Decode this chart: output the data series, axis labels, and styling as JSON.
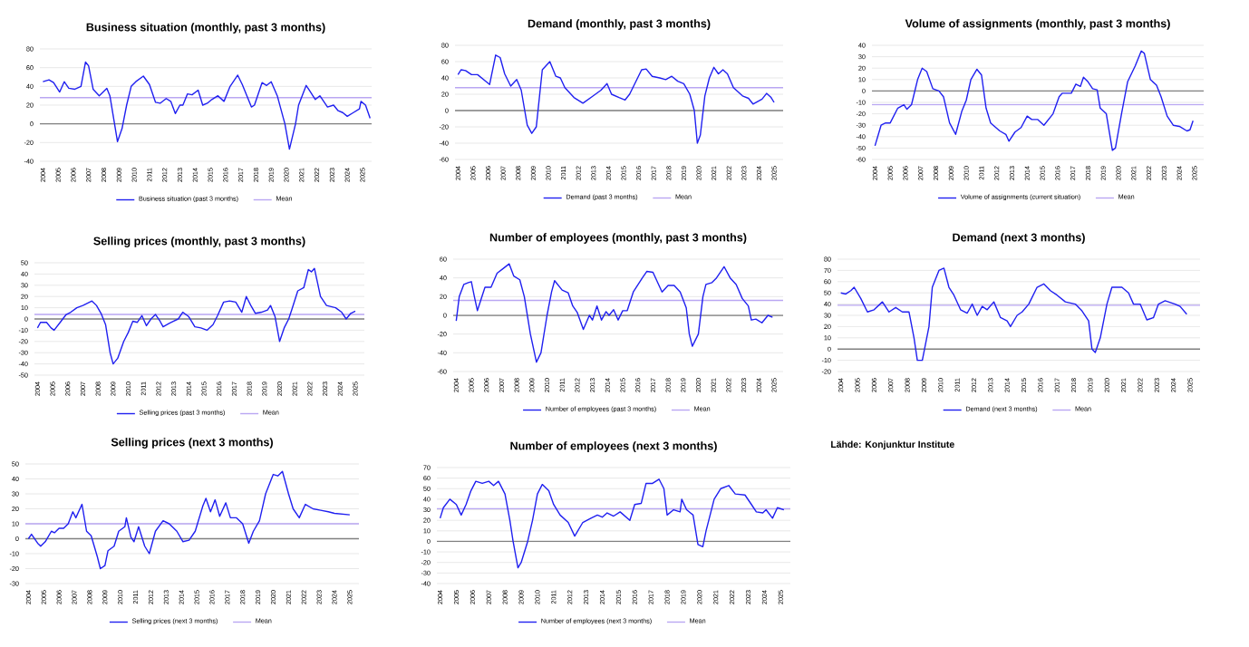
{
  "chart_data": [
    {
      "type": "line",
      "title": "Business situation (monthly, past 3 months)",
      "xlim": [
        2003.8,
        2025.6
      ],
      "xticks": [
        2004,
        2005,
        2006,
        2007,
        2008,
        2009,
        2010,
        2011,
        2012,
        2013,
        2014,
        2015,
        2016,
        2017,
        2018,
        2019,
        2020,
        2021,
        2022,
        2023,
        2024,
        2025
      ],
      "ylim": [
        -40,
        80
      ],
      "yticks": [
        -40,
        -20,
        0,
        20,
        40,
        60,
        80
      ],
      "grid": "y",
      "legend": "bottom",
      "ref_lines": [
        {
          "axis": "y",
          "value": 0,
          "color": "#808080"
        },
        {
          "axis": "y",
          "value": 28,
          "label": "Mean",
          "color": "#b9a6f2"
        }
      ],
      "series": [
        {
          "name": "Business situation (past 3 months)",
          "color": "#2020f0",
          "x": [
            2004.0,
            2004.4,
            2004.7,
            2005.1,
            2005.4,
            2005.7,
            2006.1,
            2006.5,
            2006.8,
            2007.0,
            2007.3,
            2007.7,
            2008.2,
            2008.4,
            2008.9,
            2009.2,
            2009.5,
            2009.8,
            2010.1,
            2010.6,
            2011.0,
            2011.4,
            2011.7,
            2012.1,
            2012.4,
            2012.7,
            2013.0,
            2013.2,
            2013.5,
            2013.8,
            2014.2,
            2014.5,
            2014.8,
            2015.1,
            2015.5,
            2015.9,
            2016.3,
            2016.8,
            2017.1,
            2017.7,
            2017.9,
            2018.4,
            2018.7,
            2019.0,
            2019.4,
            2019.9,
            2020.2,
            2020.6,
            2020.8,
            2021.3,
            2021.5,
            2021.9,
            2022.2,
            2022.7,
            2023.1,
            2023.4,
            2023.7,
            2024.0,
            2024.4,
            2024.8,
            2024.9,
            2025.2,
            2025.5
          ],
          "values": [
            45,
            47,
            44,
            34,
            45,
            38,
            37,
            40,
            66,
            62,
            37,
            30,
            38,
            30,
            -19,
            -5,
            20,
            40,
            45,
            51,
            42,
            23,
            22,
            27,
            24,
            11,
            20,
            20,
            32,
            31,
            36,
            20,
            22,
            26,
            30,
            24,
            40,
            52,
            42,
            18,
            20,
            44,
            41,
            45,
            30,
            0,
            -27,
            0,
            20,
            41,
            36,
            26,
            30,
            18,
            20,
            14,
            12,
            8,
            12,
            16,
            24,
            20,
            6
          ]
        }
      ]
    },
    {
      "type": "line",
      "title": "Demand (monthly, past 3 months)",
      "xlim": [
        2003.8,
        2025.6
      ],
      "xticks": [
        2004,
        2005,
        2006,
        2007,
        2008,
        2009,
        2010,
        2011,
        2012,
        2013,
        2014,
        2015,
        2016,
        2017,
        2018,
        2019,
        2020,
        2021,
        2022,
        2023,
        2024,
        2025
      ],
      "ylim": [
        -60,
        80
      ],
      "yticks": [
        -60,
        -40,
        -20,
        0,
        20,
        40,
        60,
        80
      ],
      "grid": "y",
      "legend": "bottom",
      "ref_lines": [
        {
          "axis": "y",
          "value": 0,
          "color": "#808080"
        },
        {
          "axis": "y",
          "value": 28,
          "label": "Mean",
          "color": "#b9a6f2"
        }
      ],
      "series": [
        {
          "name": "Demand (past 3 months)",
          "color": "#2020f0",
          "x": [
            2004.0,
            2004.2,
            2004.5,
            2004.9,
            2005.3,
            2005.9,
            2006.1,
            2006.5,
            2006.8,
            2007.1,
            2007.5,
            2007.9,
            2008.2,
            2008.6,
            2008.9,
            2009.2,
            2009.6,
            2010.1,
            2010.5,
            2010.8,
            2011.1,
            2011.7,
            2012.3,
            2012.9,
            2013.5,
            2013.9,
            2014.2,
            2014.7,
            2015.1,
            2015.4,
            2015.8,
            2016.2,
            2016.5,
            2016.9,
            2017.4,
            2017.8,
            2018.2,
            2018.6,
            2019.0,
            2019.4,
            2019.7,
            2019.9,
            2020.1,
            2020.4,
            2020.7,
            2021.0,
            2021.3,
            2021.6,
            2021.9,
            2022.3,
            2022.6,
            2022.9,
            2023.3,
            2023.6,
            2024.2,
            2024.5,
            2024.8,
            2025.0
          ],
          "values": [
            44,
            50,
            49,
            44,
            44,
            35,
            32,
            68,
            65,
            45,
            30,
            38,
            25,
            -18,
            -28,
            -20,
            50,
            60,
            42,
            40,
            28,
            16,
            9,
            17,
            25,
            33,
            20,
            16,
            13,
            20,
            35,
            50,
            51,
            42,
            40,
            38,
            42,
            36,
            33,
            20,
            0,
            -40,
            -30,
            18,
            40,
            53,
            45,
            50,
            45,
            28,
            23,
            18,
            15,
            8,
            14,
            21,
            16,
            10
          ]
        }
      ]
    },
    {
      "type": "line",
      "title": "Volume of assignments (monthly, past 3 months)",
      "xlim": [
        2003.8,
        2025.6
      ],
      "xticks": [
        2004,
        2005,
        2006,
        2007,
        2008,
        2009,
        2010,
        2011,
        2012,
        2013,
        2014,
        2015,
        2016,
        2017,
        2018,
        2019,
        2020,
        2021,
        2022,
        2023,
        2024,
        2025
      ],
      "ylim": [
        -60,
        40
      ],
      "yticks": [
        -60,
        -50,
        -40,
        -30,
        -20,
        -10,
        0,
        10,
        20,
        30,
        40
      ],
      "grid": "y",
      "legend": "bottom",
      "ref_lines": [
        {
          "axis": "y",
          "value": 0,
          "color": "#808080"
        },
        {
          "axis": "y",
          "value": -12,
          "label": "Mean",
          "color": "#b9a6f2"
        }
      ],
      "series": [
        {
          "name": "Volume of assignments (current situation)",
          "color": "#2020f0",
          "x": [
            2004.0,
            2004.4,
            2004.7,
            2005.0,
            2005.5,
            2005.9,
            2006.1,
            2006.4,
            2006.8,
            2007.1,
            2007.4,
            2007.8,
            2008.2,
            2008.5,
            2008.9,
            2009.3,
            2009.7,
            2010.0,
            2010.3,
            2010.7,
            2011.0,
            2011.3,
            2011.6,
            2012.2,
            2012.6,
            2012.8,
            2013.2,
            2013.6,
            2014.0,
            2014.3,
            2014.7,
            2015.1,
            2015.7,
            2016.1,
            2016.3,
            2016.9,
            2017.2,
            2017.5,
            2017.7,
            2018.0,
            2018.3,
            2018.6,
            2018.8,
            2019.2,
            2019.6,
            2019.8,
            2020.2,
            2020.6,
            2021.1,
            2021.5,
            2021.7,
            2022.1,
            2022.5,
            2022.8,
            2023.2,
            2023.6,
            2024.0,
            2024.5,
            2024.7,
            2024.9
          ],
          "values": [
            -48,
            -30,
            -28,
            -28,
            -15,
            -12,
            -16,
            -12,
            10,
            20,
            17,
            2,
            0,
            -5,
            -28,
            -38,
            -18,
            -8,
            10,
            19,
            14,
            -15,
            -28,
            -35,
            -38,
            -44,
            -36,
            -32,
            -22,
            -25,
            -25,
            -30,
            -20,
            -5,
            -2,
            -2,
            6,
            4,
            12,
            8,
            2,
            1,
            -15,
            -20,
            -52,
            -50,
            -20,
            8,
            22,
            35,
            33,
            10,
            5,
            -5,
            -22,
            -30,
            -31,
            -35,
            -34,
            -26
          ]
        }
      ]
    },
    {
      "type": "line",
      "title": "Selling prices (monthly, past 3 months)",
      "xlim": [
        2003.8,
        2025.6
      ],
      "xticks": [
        2004,
        2005,
        2006,
        2007,
        2008,
        2009,
        2010,
        2011,
        2012,
        2013,
        2014,
        2015,
        2016,
        2017,
        2018,
        2019,
        2020,
        2021,
        2022,
        2023,
        2024,
        2025
      ],
      "ylim": [
        -50,
        50
      ],
      "yticks": [
        -50,
        -40,
        -30,
        -20,
        -10,
        0,
        10,
        20,
        30,
        40,
        50
      ],
      "grid": "y",
      "legend": "bottom",
      "ref_lines": [
        {
          "axis": "y",
          "value": 0,
          "color": "#808080"
        },
        {
          "axis": "y",
          "value": 4,
          "label": "Mean",
          "color": "#b9a6f2"
        }
      ],
      "series": [
        {
          "name": "Selling prices (past 3 months)",
          "color": "#2020f0",
          "x": [
            2004.0,
            2004.2,
            2004.6,
            2004.9,
            2005.1,
            2005.5,
            2005.9,
            2006.2,
            2006.6,
            2007.0,
            2007.6,
            2007.9,
            2008.2,
            2008.5,
            2008.8,
            2009.0,
            2009.3,
            2009.7,
            2010.0,
            2010.3,
            2010.6,
            2010.9,
            2011.2,
            2011.5,
            2011.8,
            2012.1,
            2012.3,
            2012.7,
            2013.0,
            2013.3,
            2013.6,
            2014.0,
            2014.4,
            2014.8,
            2015.2,
            2015.6,
            2015.9,
            2016.3,
            2016.7,
            2017.1,
            2017.5,
            2017.8,
            2018.1,
            2018.4,
            2018.8,
            2019.2,
            2019.4,
            2019.7,
            2020.0,
            2020.3,
            2020.6,
            2020.8,
            2021.2,
            2021.6,
            2021.9,
            2022.1,
            2022.3,
            2022.7,
            2023.1,
            2023.7,
            2024.1,
            2024.4,
            2024.7,
            2025.0
          ],
          "values": [
            -8,
            -3,
            -3,
            -8,
            -10,
            -3,
            4,
            6,
            10,
            12,
            16,
            12,
            5,
            -5,
            -30,
            -40,
            -35,
            -20,
            -12,
            -2,
            -3,
            3,
            -6,
            0,
            4,
            -2,
            -7,
            -4,
            -2,
            0,
            6,
            2,
            -7,
            -8,
            -10,
            -5,
            3,
            15,
            16,
            15,
            6,
            20,
            12,
            5,
            6,
            8,
            12,
            2,
            -20,
            -8,
            0,
            8,
            25,
            28,
            44,
            42,
            45,
            20,
            12,
            10,
            6,
            0,
            5,
            7
          ]
        }
      ]
    },
    {
      "type": "line",
      "title": "Number of employees (monthly, past 3 months)",
      "xlim": [
        2003.8,
        2025.6
      ],
      "xticks": [
        2004,
        2005,
        2006,
        2007,
        2008,
        2009,
        2010,
        2011,
        2012,
        2013,
        2014,
        2015,
        2016,
        2017,
        2018,
        2019,
        2020,
        2021,
        2022,
        2023,
        2024,
        2025
      ],
      "ylim": [
        -60,
        60
      ],
      "yticks": [
        -60,
        -40,
        -20,
        0,
        20,
        40,
        60
      ],
      "grid": "y",
      "legend": "bottom",
      "ref_lines": [
        {
          "axis": "y",
          "value": 0,
          "color": "#808080"
        },
        {
          "axis": "y",
          "value": 16,
          "label": "Mean",
          "color": "#b9a6f2"
        }
      ],
      "series": [
        {
          "name": "Number of employees (past 3 months)",
          "color": "#2020f0",
          "x": [
            2004.0,
            2004.2,
            2004.5,
            2004.8,
            2005.0,
            2005.2,
            2005.4,
            2005.7,
            2005.9,
            2006.3,
            2006.7,
            2007.1,
            2007.5,
            2007.8,
            2008.2,
            2008.5,
            2008.9,
            2009.3,
            2009.6,
            2010.0,
            2010.3,
            2010.5,
            2011.0,
            2011.4,
            2011.7,
            2012.0,
            2012.4,
            2012.8,
            2013.0,
            2013.3,
            2013.6,
            2013.9,
            2014.1,
            2014.4,
            2014.7,
            2015.0,
            2015.3,
            2015.7,
            2016.3,
            2016.6,
            2017.0,
            2017.6,
            2018.0,
            2018.4,
            2018.8,
            2019.2,
            2019.4,
            2019.6,
            2020.0,
            2020.3,
            2020.5,
            2020.9,
            2021.2,
            2021.7,
            2022.1,
            2022.5,
            2022.9,
            2023.3,
            2023.5,
            2023.8,
            2024.2,
            2024.6,
            2024.9
          ],
          "values": [
            -6,
            20,
            33,
            35,
            36,
            20,
            5,
            20,
            30,
            30,
            45,
            50,
            55,
            42,
            38,
            20,
            -20,
            -50,
            -40,
            0,
            25,
            37,
            27,
            24,
            10,
            3,
            -15,
            0,
            -5,
            10,
            -5,
            4,
            0,
            6,
            -5,
            5,
            5,
            25,
            40,
            47,
            46,
            25,
            32,
            32,
            25,
            8,
            -20,
            -33,
            -20,
            20,
            33,
            35,
            40,
            52,
            40,
            33,
            18,
            10,
            -5,
            -4,
            -8,
            0,
            -2
          ]
        }
      ]
    },
    {
      "type": "line",
      "title": "Demand (next 3 months)",
      "xlim": [
        2003.8,
        2025.6
      ],
      "xticks": [
        2004,
        2005,
        2006,
        2007,
        2008,
        2009,
        2010,
        2011,
        2012,
        2013,
        2014,
        2015,
        2016,
        2017,
        2018,
        2019,
        2020,
        2021,
        2022,
        2023,
        2024,
        2025
      ],
      "ylim": [
        -20,
        80
      ],
      "yticks": [
        -20,
        -10,
        0,
        10,
        20,
        30,
        40,
        50,
        60,
        70,
        80
      ],
      "grid": "y",
      "legend": "bottom",
      "ref_lines": [
        {
          "axis": "y",
          "value": 0,
          "color": "#808080"
        },
        {
          "axis": "y",
          "value": 39,
          "label": "Mean",
          "color": "#b9a6f2"
        }
      ],
      "series": [
        {
          "name": "Demand (next 3 months)",
          "color": "#2020f0",
          "x": [
            2004.0,
            2004.3,
            2004.6,
            2004.8,
            2005.2,
            2005.6,
            2006.0,
            2006.5,
            2006.9,
            2007.3,
            2007.7,
            2008.1,
            2008.4,
            2008.6,
            2008.9,
            2009.3,
            2009.5,
            2009.9,
            2010.2,
            2010.5,
            2010.8,
            2011.2,
            2011.6,
            2011.9,
            2012.2,
            2012.5,
            2012.8,
            2013.2,
            2013.6,
            2014.0,
            2014.2,
            2014.6,
            2014.9,
            2015.3,
            2015.8,
            2016.2,
            2016.6,
            2017.0,
            2017.5,
            2018.1,
            2018.5,
            2018.9,
            2019.1,
            2019.3,
            2019.6,
            2020.0,
            2020.3,
            2020.9,
            2021.3,
            2021.6,
            2022.0,
            2022.4,
            2022.8,
            2023.1,
            2023.5,
            2024.1,
            2024.4,
            2024.8
          ],
          "values": [
            50,
            49,
            52,
            55,
            45,
            33,
            35,
            42,
            33,
            37,
            33,
            33,
            10,
            -10,
            -10,
            20,
            55,
            70,
            72,
            55,
            48,
            35,
            32,
            40,
            30,
            38,
            35,
            42,
            28,
            25,
            20,
            30,
            33,
            40,
            55,
            58,
            52,
            48,
            42,
            40,
            34,
            25,
            0,
            -3,
            10,
            40,
            55,
            55,
            50,
            40,
            40,
            26,
            28,
            40,
            43,
            40,
            38,
            31
          ]
        }
      ]
    },
    {
      "type": "line",
      "title": "Selling prices (next 3 months)",
      "xlim": [
        2003.8,
        2025.6
      ],
      "xticks": [
        2004,
        2005,
        2006,
        2007,
        2008,
        2009,
        2010,
        2011,
        2012,
        2013,
        2014,
        2015,
        2016,
        2017,
        2018,
        2019,
        2020,
        2021,
        2022,
        2023,
        2024,
        2025
      ],
      "ylim": [
        -30,
        50
      ],
      "yticks": [
        -30,
        -20,
        -10,
        0,
        10,
        20,
        30,
        40,
        50
      ],
      "grid": "y",
      "legend": "bottom",
      "ref_lines": [
        {
          "axis": "y",
          "value": 0,
          "color": "#808080"
        },
        {
          "axis": "y",
          "value": 10,
          "label": "Mean",
          "color": "#b9a6f2"
        }
      ],
      "series": [
        {
          "name": "Selling prices (next 3 months)",
          "color": "#2020f0",
          "x": [
            2004.0,
            2004.2,
            2004.6,
            2004.8,
            2005.1,
            2005.5,
            2005.7,
            2006.0,
            2006.3,
            2006.6,
            2006.9,
            2007.1,
            2007.5,
            2007.8,
            2008.1,
            2008.5,
            2008.7,
            2009.0,
            2009.2,
            2009.6,
            2009.9,
            2010.3,
            2010.4,
            2010.7,
            2010.9,
            2011.2,
            2011.6,
            2011.9,
            2012.3,
            2012.8,
            2013.2,
            2013.7,
            2014.1,
            2014.5,
            2014.9,
            2015.4,
            2015.6,
            2015.9,
            2016.2,
            2016.5,
            2016.9,
            2017.2,
            2017.6,
            2018.0,
            2018.4,
            2018.7,
            2019.1,
            2019.5,
            2020.0,
            2020.3,
            2020.6,
            2021.0,
            2021.3,
            2021.7,
            2022.1,
            2022.6,
            2023.1,
            2023.6,
            2024.0,
            2025.0
          ],
          "values": [
            0,
            3,
            -3,
            -5,
            -2,
            5,
            4,
            7,
            7,
            10,
            18,
            14,
            23,
            5,
            2,
            -12,
            -20,
            -18,
            -8,
            -5,
            5,
            8,
            14,
            1,
            -2,
            8,
            -5,
            -10,
            5,
            12,
            10,
            5,
            -2,
            -1,
            5,
            22,
            27,
            18,
            26,
            15,
            24,
            14,
            14,
            10,
            -3,
            5,
            12,
            30,
            43,
            42,
            45,
            30,
            20,
            14,
            23,
            20,
            19,
            18,
            17,
            16
          ]
        }
      ]
    },
    {
      "type": "line",
      "title": "Number of employees (next 3 months)",
      "xlim": [
        2003.8,
        2025.6
      ],
      "xticks": [
        2004,
        2005,
        2006,
        2007,
        2008,
        2009,
        2010,
        2011,
        2012,
        2013,
        2014,
        2015,
        2016,
        2017,
        2018,
        2019,
        2020,
        2021,
        2022,
        2023,
        2024,
        2025
      ],
      "ylim": [
        -40,
        70
      ],
      "yticks": [
        -40,
        -30,
        -20,
        -10,
        0,
        10,
        20,
        30,
        40,
        50,
        60,
        70
      ],
      "grid": "y",
      "legend": "bottom",
      "ref_lines": [
        {
          "axis": "y",
          "value": 0,
          "color": "#808080"
        },
        {
          "axis": "y",
          "value": 31,
          "label": "Mean",
          "color": "#b9a6f2"
        }
      ],
      "series": [
        {
          "name": "Number of employees (next 3 months)",
          "color": "#2020f0",
          "x": [
            2004.0,
            2004.2,
            2004.6,
            2005.0,
            2005.3,
            2005.6,
            2005.9,
            2006.2,
            2006.6,
            2007.0,
            2007.3,
            2007.6,
            2008.0,
            2008.3,
            2008.5,
            2008.8,
            2009.0,
            2009.4,
            2009.7,
            2010.0,
            2010.3,
            2010.7,
            2011.0,
            2011.4,
            2011.9,
            2012.3,
            2012.8,
            2013.3,
            2013.7,
            2014.0,
            2014.3,
            2014.7,
            2015.1,
            2015.7,
            2016.0,
            2016.4,
            2016.7,
            2017.1,
            2017.5,
            2017.8,
            2018.0,
            2018.4,
            2018.8,
            2018.9,
            2019.2,
            2019.6,
            2019.9,
            2020.2,
            2020.4,
            2020.9,
            2021.3,
            2021.8,
            2022.2,
            2022.8,
            2023.2,
            2023.5,
            2023.9,
            2024.1,
            2024.5,
            2024.8,
            2025.2
          ],
          "values": [
            22,
            32,
            40,
            35,
            25,
            35,
            48,
            57,
            55,
            57,
            53,
            57,
            45,
            20,
            0,
            -25,
            -20,
            0,
            20,
            45,
            54,
            48,
            35,
            25,
            18,
            5,
            18,
            22,
            25,
            23,
            27,
            24,
            28,
            20,
            35,
            36,
            55,
            55,
            59,
            50,
            25,
            30,
            28,
            40,
            30,
            25,
            -3,
            -5,
            10,
            40,
            50,
            53,
            45,
            44,
            35,
            28,
            27,
            30,
            22,
            32,
            30
          ]
        }
      ]
    },
    {
      "type": "other",
      "annotations": [
        "Lähde: Konjunktur Institute"
      ]
    }
  ]
}
